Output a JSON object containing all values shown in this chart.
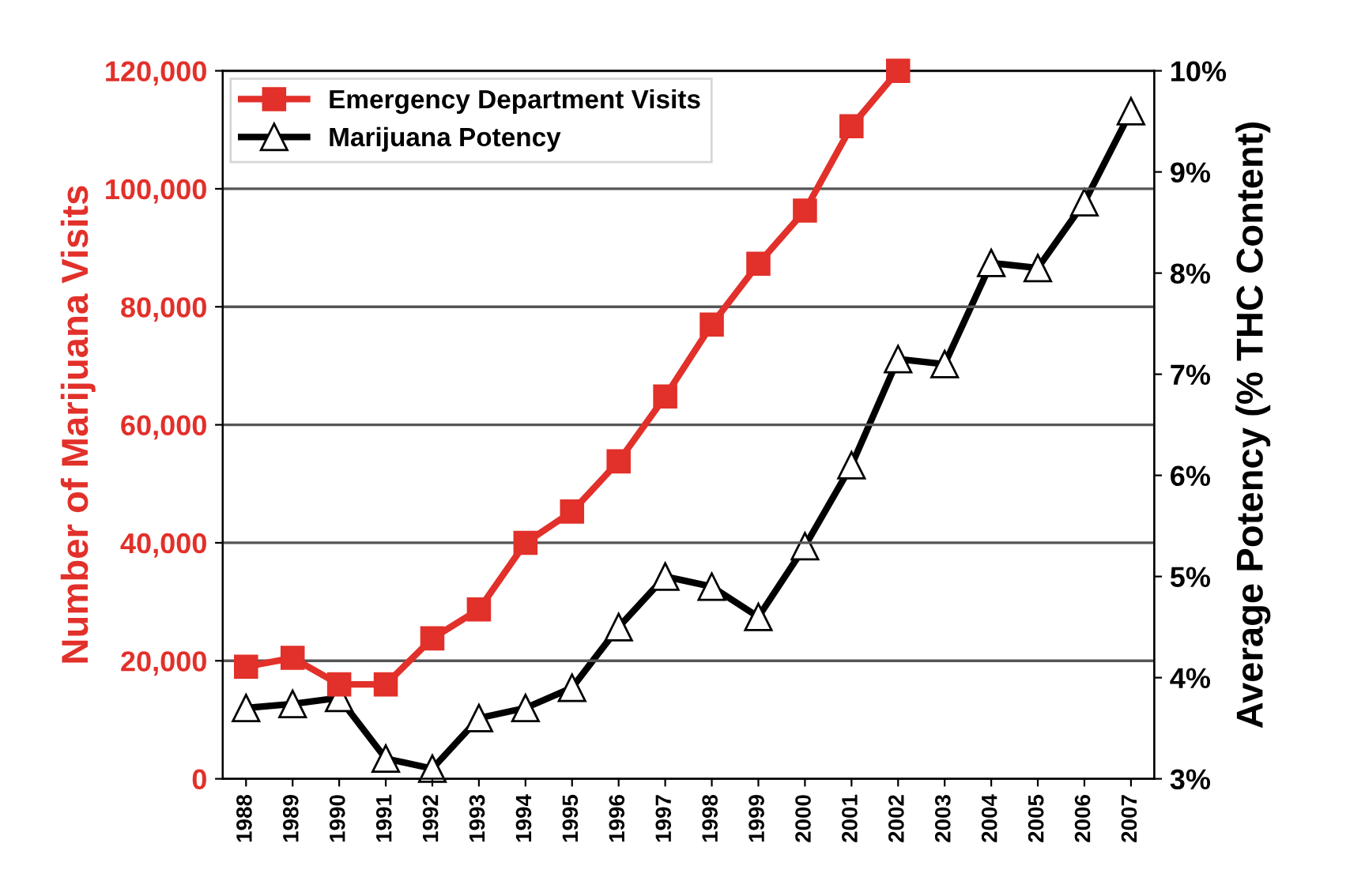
{
  "chart_data": {
    "type": "line",
    "ylabel": "Number of Marijuana Visits",
    "y2label": "Average Potency (% THC Content)",
    "categories": [
      "1988",
      "1989",
      "1990",
      "1991",
      "1992",
      "1993",
      "1994",
      "1995",
      "1996",
      "1997",
      "1998",
      "1999",
      "2000",
      "2001",
      "2002",
      "2003",
      "2004",
      "2005",
      "2006",
      "2007"
    ],
    "series": [
      {
        "name": "Emergency Department Visits",
        "color": "#e2302a",
        "marker": "square",
        "values": [
          19000,
          20500,
          16000,
          16000,
          23800,
          28700,
          40000,
          45300,
          53800,
          64800,
          77000,
          87300,
          96300,
          110600,
          120000,
          null,
          null,
          null,
          null,
          null
        ]
      },
      {
        "name": "Marijuana Potency",
        "color": "#000000",
        "marker": "triangle",
        "axis": "y2",
        "values": [
          3.7,
          3.74,
          3.8,
          3.2,
          3.1,
          3.6,
          3.7,
          3.9,
          4.5,
          5.0,
          4.9,
          4.6,
          5.3,
          6.1,
          7.15,
          7.1,
          8.1,
          8.05,
          8.7,
          9.6
        ]
      }
    ],
    "ylim": [
      0,
      120000
    ],
    "yticks": [
      {
        "value": 0,
        "label": "0"
      },
      {
        "value": 20000,
        "label": "20,000"
      },
      {
        "value": 40000,
        "label": "40,000"
      },
      {
        "value": 60000,
        "label": "60,000"
      },
      {
        "value": 80000,
        "label": "80,000"
      },
      {
        "value": 100000,
        "label": "100,000"
      },
      {
        "value": 120000,
        "label": "120,000"
      }
    ],
    "y2lim": [
      3,
      10
    ],
    "y2ticks": [
      {
        "value": 3,
        "label": "3%"
      },
      {
        "value": 4,
        "label": "4%"
      },
      {
        "value": 5,
        "label": "5%"
      },
      {
        "value": 6,
        "label": "6%"
      },
      {
        "value": 7,
        "label": "7%"
      },
      {
        "value": 8,
        "label": "8%"
      },
      {
        "value": 9,
        "label": "9%"
      },
      {
        "value": 10,
        "label": "10%"
      }
    ],
    "grid": "y",
    "legend": "top left",
    "line_style": "solid"
  }
}
